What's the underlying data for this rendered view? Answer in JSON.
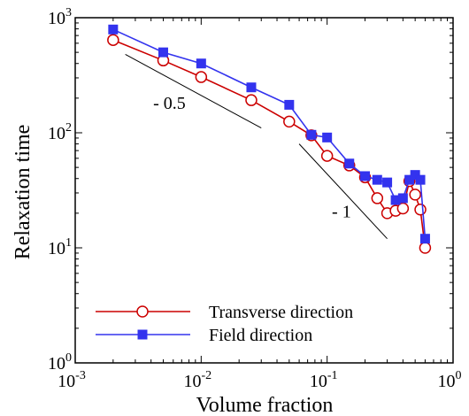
{
  "chart_data": {
    "type": "line",
    "xlabel": "Volume fraction",
    "ylabel": "Relaxation time",
    "x_scale": "log",
    "y_scale": "log",
    "xlim": [
      0.001,
      1
    ],
    "ylim": [
      1,
      1000
    ],
    "x_ticks": [
      {
        "value": 0.001,
        "base": "10",
        "exp": "-3"
      },
      {
        "value": 0.01,
        "base": "10",
        "exp": "-2"
      },
      {
        "value": 0.1,
        "base": "10",
        "exp": "-1"
      },
      {
        "value": 1,
        "base": "10",
        "exp": "0"
      }
    ],
    "y_ticks": [
      {
        "value": 1,
        "base": "10",
        "exp": "0"
      },
      {
        "value": 10,
        "base": "10",
        "exp": "1"
      },
      {
        "value": 100,
        "base": "10",
        "exp": "2"
      },
      {
        "value": 1000,
        "base": "10",
        "exp": "3"
      }
    ],
    "grid": false,
    "legend_position": "bottom-left",
    "series": [
      {
        "name": "Transverse direction",
        "color": "#cc0000",
        "marker": "open-circle",
        "x": [
          0.002,
          0.005,
          0.01,
          0.025,
          0.05,
          0.075,
          0.1,
          0.15,
          0.2,
          0.25,
          0.3,
          0.35,
          0.4,
          0.45,
          0.5,
          0.55,
          0.6
        ],
        "y": [
          640,
          425,
          305,
          192,
          125,
          95,
          63,
          52,
          41,
          27,
          20,
          21,
          22,
          38,
          29,
          21.5,
          10
        ]
      },
      {
        "name": "Field direction",
        "color": "#3333ee",
        "marker": "filled-square",
        "x": [
          0.002,
          0.005,
          0.01,
          0.025,
          0.05,
          0.075,
          0.1,
          0.15,
          0.2,
          0.25,
          0.3,
          0.35,
          0.4,
          0.45,
          0.5,
          0.55,
          0.6
        ],
        "y": [
          790,
          500,
          400,
          248,
          175,
          96,
          91,
          54,
          42,
          39,
          37,
          26,
          27,
          39,
          43,
          39,
          12
        ]
      }
    ],
    "annotations": [
      {
        "text": "- 0.5",
        "slope_line": {
          "x": [
            0.0025,
            0.03
          ],
          "y": [
            480,
            110
          ]
        },
        "label_at": {
          "x": 0.0056,
          "y": 162
        }
      },
      {
        "text": "- 1",
        "slope_line": {
          "x": [
            0.06,
            0.3
          ],
          "y": [
            80,
            12
          ]
        },
        "label_at": {
          "x": 0.13,
          "y": 18.5
        }
      }
    ]
  }
}
